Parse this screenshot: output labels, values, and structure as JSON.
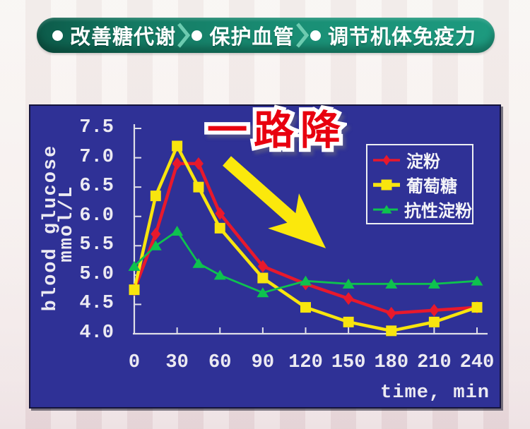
{
  "banner": {
    "items": [
      {
        "label": "改善糖代谢"
      },
      {
        "label": "保护血管"
      },
      {
        "label": "调节机体免疫力"
      }
    ]
  },
  "chart_data": {
    "type": "line",
    "title": "一路降",
    "xlabel": "time, min",
    "ylabel_line1": "blood glucose",
    "ylabel_line2": "mmol/L",
    "x": [
      0,
      15,
      30,
      45,
      60,
      90,
      120,
      150,
      180,
      210,
      240
    ],
    "x_tick_values": [
      0,
      30,
      60,
      90,
      120,
      150,
      180,
      210,
      240
    ],
    "x_tick_labels": [
      "0",
      "30",
      "60",
      "90",
      "120",
      "150",
      "180",
      "210",
      "240"
    ],
    "y_tick_values": [
      4.0,
      4.5,
      5.0,
      5.5,
      6.0,
      6.5,
      7.0,
      7.5
    ],
    "y_tick_labels": [
      "4.0",
      "4.5",
      "5.0",
      "5.5",
      "6.0",
      "6.5",
      "7.0",
      "7.5"
    ],
    "xlim": [
      0,
      240
    ],
    "ylim": [
      4.0,
      7.55
    ],
    "grid": false,
    "legend_position": "upper right",
    "plot_bg": "#2f3196",
    "axis_color": "#dfdfe8",
    "series": [
      {
        "name": "淀粉",
        "marker": "diamond",
        "color": "#e8192c",
        "values": [
          4.75,
          5.7,
          6.9,
          6.9,
          6.05,
          5.15,
          4.85,
          4.6,
          4.35,
          4.4,
          4.45
        ]
      },
      {
        "name": "葡萄糖",
        "marker": "square",
        "color": "#f8e50e",
        "values": [
          4.75,
          6.35,
          7.2,
          6.5,
          5.8,
          4.95,
          4.45,
          4.2,
          4.05,
          4.2,
          4.45
        ]
      },
      {
        "name": "抗性淀粉",
        "marker": "triangle",
        "color": "#0ec24e",
        "values": [
          5.15,
          5.5,
          5.75,
          5.2,
          5.0,
          4.7,
          4.9,
          4.85,
          4.85,
          4.85,
          4.9
        ]
      }
    ]
  }
}
